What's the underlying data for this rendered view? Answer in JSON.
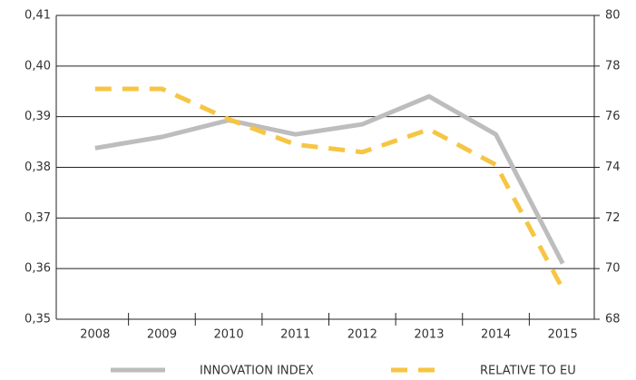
{
  "chart_data": {
    "type": "line",
    "categories": [
      "2008",
      "2009",
      "2010",
      "2011",
      "2012",
      "2013",
      "2014",
      "2015"
    ],
    "series": [
      {
        "name": "INNOVATION INDEX",
        "color": "#bdbdbd",
        "values": [
          0.3838,
          0.386,
          0.3893,
          0.3865,
          0.3885,
          0.394,
          0.3865,
          0.361
        ]
      },
      {
        "name": "RELATIVE TO EU",
        "color": "#f6c543",
        "axis": "y2",
        "dashed": true,
        "values": [
          77.1,
          77.1,
          75.9,
          74.9,
          74.6,
          75.5,
          74.1,
          69.2
        ]
      }
    ],
    "ylim": [
      0.35,
      0.41
    ],
    "yticks": [
      {
        "value": 0.35,
        "label": "0,35"
      },
      {
        "value": 0.36,
        "label": "0,36"
      },
      {
        "value": 0.37,
        "label": "0,37"
      },
      {
        "value": 0.38,
        "label": "0,38"
      },
      {
        "value": 0.39,
        "label": "0,39"
      },
      {
        "value": 0.4,
        "label": "0,40"
      },
      {
        "value": 0.41,
        "label": "0,41"
      }
    ],
    "y2lim": [
      68,
      80
    ],
    "y2ticks": [
      68,
      70,
      72,
      74,
      76,
      78,
      80
    ],
    "grid": true,
    "legend": "bottom"
  }
}
